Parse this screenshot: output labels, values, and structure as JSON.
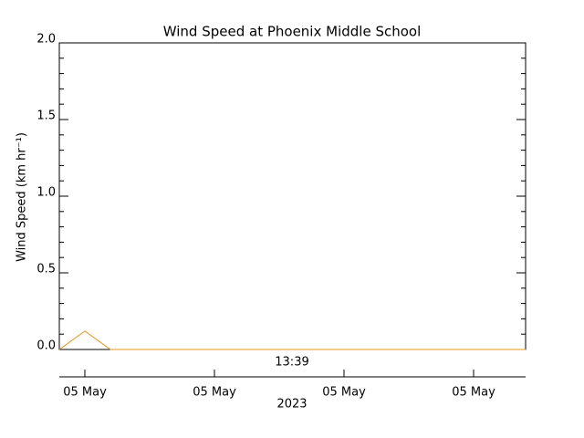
{
  "chart_data": {
    "type": "line",
    "title": "Wind Speed at Phoenix Middle School",
    "ylabel": "Wind Speed (km hr⁻¹)",
    "time_label": "13:39",
    "xlabel": "2023",
    "xtick_labels": [
      "05 May",
      "05 May",
      "05 May",
      "05 May"
    ],
    "series": [
      {
        "color": "#e8941c",
        "values": [
          0,
          0.12,
          0,
          0,
          0,
          0,
          0,
          0,
          0,
          0,
          0,
          0,
          0,
          0,
          0,
          0,
          0,
          0,
          0
        ]
      }
    ],
    "ylim": [
      0,
      2.0
    ],
    "yticks": [
      {
        "value": 0,
        "label": "0.0"
      },
      {
        "value": 0.5,
        "label": "0.5"
      },
      {
        "value": 1.0,
        "label": "1.0"
      },
      {
        "value": 1.5,
        "label": "1.5"
      },
      {
        "value": 2.0,
        "label": "2.0"
      }
    ]
  }
}
